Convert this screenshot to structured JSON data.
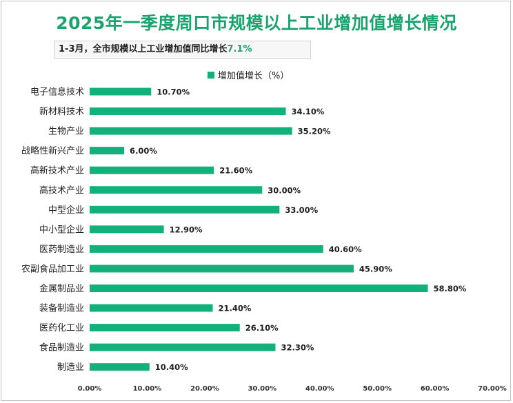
{
  "header": {
    "title": "2025年一季度周口市规模以上工业增加值增长情况",
    "subtitle_prefix": "1-3月，全市规模以上工业增加值同比增长",
    "subtitle_value": "7.1%"
  },
  "colors": {
    "bar": "#12b07a",
    "title": "#1aa36f",
    "subtitle_highlight": "#1aa36f"
  },
  "chart_data": {
    "type": "bar",
    "orientation": "horizontal",
    "legend": "增加值增长（%）",
    "legend_position": "top",
    "categories": [
      "电子信息技术",
      "新材料技术",
      "生物产业",
      "战略性新兴产业",
      "高新技术产业",
      "高技术产业",
      "中型企业",
      "中小型企业",
      "医药制造业",
      "农副食品加工业",
      "金属制品业",
      "装备制造业",
      "医药化工业",
      "食品制造业",
      "制造业"
    ],
    "values": [
      10.7,
      34.1,
      35.2,
      6.0,
      21.6,
      30.0,
      33.0,
      12.9,
      40.6,
      45.9,
      58.8,
      21.4,
      26.1,
      32.3,
      10.4
    ],
    "value_labels": [
      "10.70%",
      "34.10%",
      "35.20%",
      "6.00%",
      "21.60%",
      "30.00%",
      "33.00%",
      "12.90%",
      "40.60%",
      "45.90%",
      "58.80%",
      "21.40%",
      "26.10%",
      "32.30%",
      "10.40%"
    ],
    "xlim": [
      0,
      70
    ],
    "x_ticks": [
      0,
      10,
      20,
      30,
      40,
      50,
      60,
      70
    ],
    "x_tick_labels": [
      "0.00%",
      "10.00%",
      "20.00%",
      "30.00%",
      "40.00%",
      "50.00%",
      "60.00%",
      "70.00%"
    ],
    "grid": false
  }
}
